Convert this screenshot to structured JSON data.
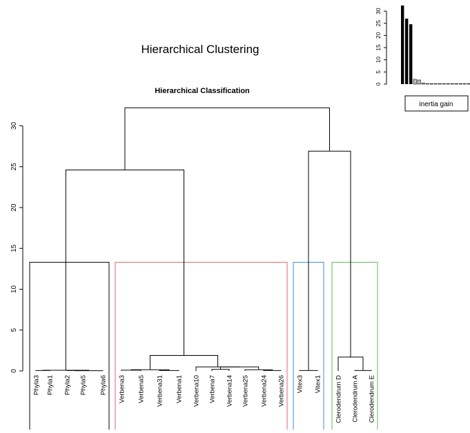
{
  "title": "Hierarchical Clustering",
  "colors": {
    "tree": "#000000",
    "axis": "#000000",
    "cluster_borders": [
      "#000000",
      "#e06666",
      "#3c8ad8",
      "#5cb85c"
    ]
  },
  "chart_data": [
    {
      "type": "bar",
      "title": "",
      "xlabel": "",
      "ylabel": "",
      "ylim": [
        0,
        32
      ],
      "yticks": [
        0,
        5,
        10,
        15,
        20,
        25,
        30
      ],
      "values": [
        32.3,
        26.9,
        24.6,
        2.0,
        1.7,
        0.5,
        0.2,
        0.1,
        0.05,
        0.03,
        0.02,
        0.01,
        0.01,
        0.005,
        0.005,
        0.005,
        0.005,
        0.005,
        0.005,
        0.005
      ],
      "highlighted_count": 3,
      "legend": {
        "label": "inertia gain",
        "position": "bottom"
      }
    },
    {
      "type": "dendrogram",
      "title": "Hierarchical Classification",
      "xlabel": "",
      "ylabel": "",
      "ylim": [
        0,
        32
      ],
      "yticks": [
        0,
        5,
        10,
        15,
        20,
        25,
        30
      ],
      "leaves": [
        "Phyla3",
        "Phyla1",
        "Phyla2",
        "Phyla5",
        "Phyla6",
        "Verbena3",
        "Verbena5",
        "Verbena31",
        "Verbena1",
        "Verbena10",
        "Verbena7",
        "Verbena14",
        "Verbena25",
        "Verbena24",
        "Verbena26",
        "Vitex3",
        "Vitex1",
        "Clerodendrum D",
        "Clerodendrum A",
        "Clerodendrum E"
      ],
      "merges": [
        {
          "left": "Phyla3",
          "right": "Phyla1",
          "height": 0.05
        },
        {
          "left": "Phyla2",
          "right": "Phyla5",
          "height": 0.05
        },
        {
          "left": "Phyla2+Phyla5",
          "right": "Phyla6",
          "height": 0.03
        },
        {
          "left": "Phyla3+Phyla1",
          "right": "Phyla2+Phyla5+Phyla6",
          "height": 0.08
        },
        {
          "left": "Verbena3",
          "right": "Verbena5",
          "height": 0.1
        },
        {
          "left": "Verbena31",
          "right": "Verbena1",
          "height": 0.05
        },
        {
          "left": "Verbena3+Verbena5",
          "right": "Verbena31+Verbena1",
          "height": 0.15
        },
        {
          "left": "Verbena7",
          "right": "Verbena14",
          "height": 0.2
        },
        {
          "left": "Verbena24",
          "right": "Verbena26",
          "height": 0.05
        },
        {
          "left": "Verbena25",
          "right": "Verbena24+Verbena26",
          "height": 0.15
        },
        {
          "left": "Verbena7+Verbena14",
          "right": "Verbena25+Verbena24+Verbena26",
          "height": 0.5
        },
        {
          "left": "Verbena10",
          "right": "Verbena7..Verbena26",
          "height": 0.5
        },
        {
          "left": "Verbena3..Verbena1",
          "right": "Verbena10..Verbena26",
          "height": 1.9
        },
        {
          "left": "Phyla",
          "right": "Verbena",
          "height": 24.6
        },
        {
          "left": "Vitex3",
          "right": "Vitex1",
          "height": 0.05
        },
        {
          "left": "Clerodendrum A",
          "right": "Clerodendrum E",
          "height": 0.05
        },
        {
          "left": "Clerodendrum D",
          "right": "Clerodendrum A+Clerodendrum E",
          "height": 1.7
        },
        {
          "left": "Vitex",
          "right": "Clerodendrum",
          "height": 26.9
        },
        {
          "left": "Phyla+Verbena",
          "right": "Vitex+Clerodendrum",
          "height": 32.2
        }
      ],
      "clusters": [
        {
          "leaves": [
            "Phyla3",
            "Phyla1",
            "Phyla2",
            "Phyla5",
            "Phyla6"
          ],
          "color": "#000000"
        },
        {
          "leaves": [
            "Verbena3",
            "Verbena5",
            "Verbena31",
            "Verbena1",
            "Verbena10",
            "Verbena7",
            "Verbena14",
            "Verbena25",
            "Verbena24",
            "Verbena26"
          ],
          "color": "#e06666"
        },
        {
          "leaves": [
            "Vitex3",
            "Vitex1"
          ],
          "color": "#3c8ad8"
        },
        {
          "leaves": [
            "Clerodendrum D",
            "Clerodendrum A",
            "Clerodendrum E"
          ],
          "color": "#5cb85c"
        }
      ],
      "cut_height": 13.3
    }
  ]
}
